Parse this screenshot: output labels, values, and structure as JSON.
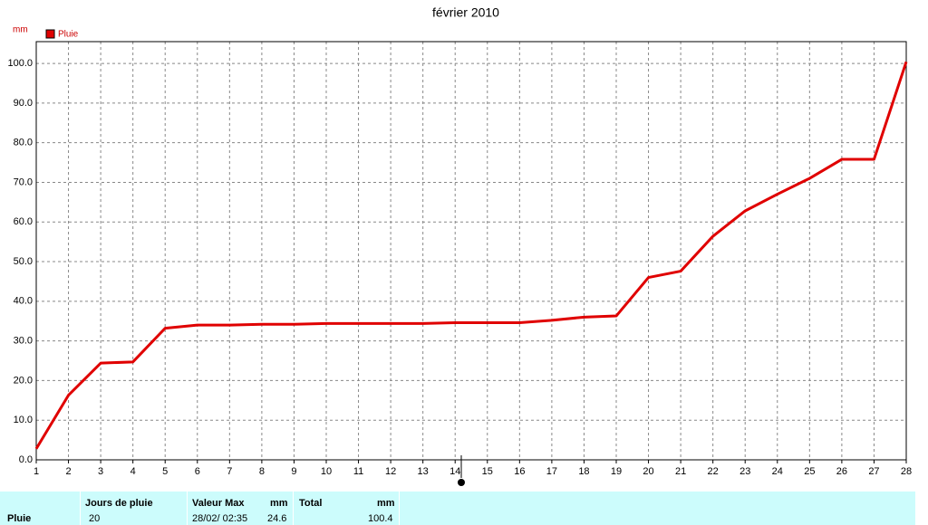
{
  "chart_data": {
    "type": "line",
    "title": "février 2010",
    "y_label": "mm",
    "x": [
      1,
      2,
      3,
      4,
      5,
      6,
      7,
      8,
      9,
      10,
      11,
      12,
      13,
      14,
      15,
      16,
      17,
      18,
      19,
      20,
      21,
      22,
      23,
      24,
      25,
      26,
      27,
      28
    ],
    "series": [
      {
        "name": "Pluie",
        "color": "#e00000",
        "values": [
          2.8,
          16.3,
          24.4,
          24.7,
          33.2,
          34.0,
          34.0,
          34.2,
          34.2,
          34.4,
          34.4,
          34.4,
          34.4,
          34.6,
          34.6,
          34.6,
          35.2,
          36.0,
          36.3,
          46.0,
          47.6,
          56.4,
          62.8,
          67.0,
          71.0,
          75.8,
          75.8,
          100.4
        ]
      }
    ],
    "xlim": [
      1,
      28
    ],
    "xticks": [
      1,
      2,
      3,
      4,
      5,
      6,
      7,
      8,
      9,
      10,
      11,
      12,
      13,
      14,
      15,
      16,
      17,
      18,
      19,
      20,
      21,
      22,
      23,
      24,
      25,
      26,
      27,
      28
    ],
    "ylim": [
      0,
      105.5
    ],
    "yticks": [
      {
        "value": 0,
        "label": "0.0"
      },
      {
        "value": 10,
        "label": "10.0"
      },
      {
        "value": 20,
        "label": "20.0"
      },
      {
        "value": 30,
        "label": "30.0"
      },
      {
        "value": 40,
        "label": "40.0"
      },
      {
        "value": 50,
        "label": "50.0"
      },
      {
        "value": 60,
        "label": "60.0"
      },
      {
        "value": 70,
        "label": "70.0"
      },
      {
        "value": 80,
        "label": "80.0"
      },
      {
        "value": 90,
        "label": "90.0"
      },
      {
        "value": 100,
        "label": "100.0"
      }
    ],
    "grid": true
  },
  "summary": {
    "label": "Pluie",
    "rain_days": {
      "header": "Jours de pluie",
      "value": 20
    },
    "max": {
      "header": "Valeur Max",
      "unit": "mm",
      "date": "28/02/ 02:35",
      "value": 24.6
    },
    "total": {
      "header": "Total",
      "unit": "mm",
      "value": 100.4
    }
  }
}
